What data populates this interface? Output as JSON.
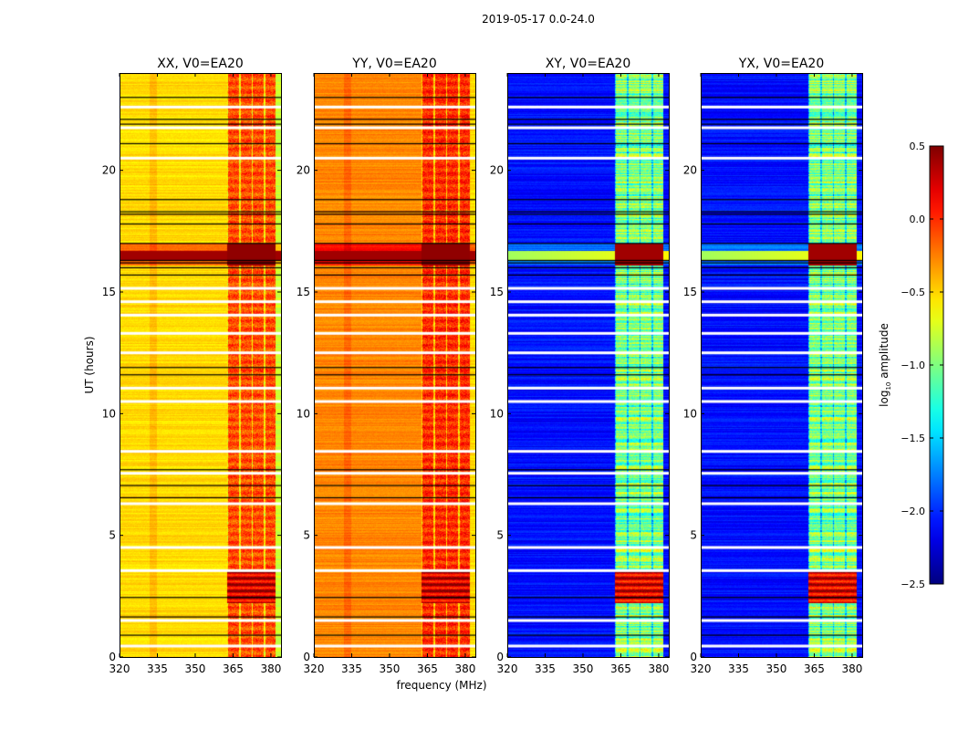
{
  "chart_data": {
    "type": "heatmap",
    "title": "2019-05-17 0.0-24.0",
    "xlabel": "frequency (MHz)",
    "ylabel": "UT (hours)",
    "xlim": [
      320,
      384
    ],
    "ylim": [
      0,
      24
    ],
    "xticks": [
      320,
      335,
      350,
      365,
      380
    ],
    "yticks": [
      0,
      5,
      10,
      15,
      20
    ],
    "colormap": "jet",
    "colorbar": {
      "label": "log10 amplitude",
      "label_main": "log",
      "label_sub": "10",
      "label_rest": " amplitude",
      "range": [
        -2.5,
        0.5
      ],
      "ticks": [
        0.5,
        0.0,
        -0.5,
        -1.0,
        -1.5,
        -2.0,
        -2.5
      ],
      "tick_labels": [
        "0.5",
        "0.0",
        "−0.5",
        "−1.0",
        "−1.5",
        "−2.0",
        "−2.5"
      ]
    },
    "panels": [
      {
        "title": "XX, V0=EA20",
        "base_log_amp": -0.6,
        "band_log_amp": -0.1,
        "storm_log_amp": 0.45
      },
      {
        "title": "YY, V0=EA20",
        "base_log_amp": -0.35,
        "band_log_amp": 0.0,
        "storm_log_amp": 0.45
      },
      {
        "title": "XY, V0=EA20",
        "base_log_amp": -2.2,
        "band_log_amp": -1.0,
        "storm_log_amp": 0.4
      },
      {
        "title": "YX, V0=EA20",
        "base_log_amp": -2.2,
        "band_log_amp": -1.0,
        "storm_log_amp": 0.4
      }
    ],
    "rfi_band_mhz": [
      362.5,
      382
    ],
    "storm_hours": [
      16.1,
      17.0
    ],
    "secondary_event_hours": [
      2.2,
      3.6
    ],
    "flagged_rows_white_hours": [
      22.6,
      21.75,
      20.5,
      15.15,
      14.6,
      14.05,
      13.3,
      12.5,
      11.05,
      10.5,
      8.45,
      7.55,
      6.3,
      4.5,
      3.55,
      1.5,
      0.45
    ],
    "flagged_rows_black_hours": [
      23.0,
      22.1,
      21.9,
      21.1,
      18.8,
      18.3,
      18.2,
      17.8,
      17.0,
      16.3,
      16.2,
      16.0,
      15.7,
      11.9,
      11.6,
      7.7,
      7.05,
      6.55,
      2.45,
      1.65,
      0.9
    ]
  }
}
